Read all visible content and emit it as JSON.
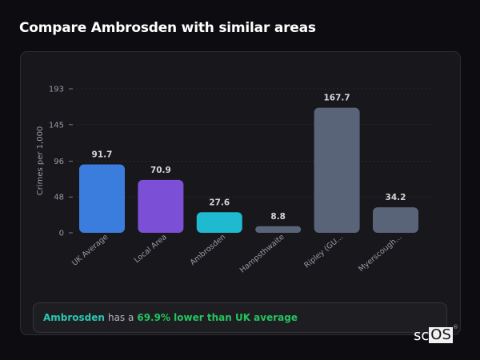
{
  "header": {
    "title": "Compare Ambrosden with similar areas"
  },
  "chart_data": {
    "type": "bar",
    "title": "Compare Ambrosden with similar areas",
    "xlabel": "",
    "ylabel": "Crimes per 1,000",
    "ylim": [
      0,
      193
    ],
    "yticks": [
      0,
      48,
      96,
      145,
      193
    ],
    "grid": true,
    "categories": [
      "UK Average",
      "Local Area",
      "Ambrosden",
      "Hampsthwaite",
      "Ripley (GU...",
      "Myerscough..."
    ],
    "values": [
      91.7,
      70.9,
      27.6,
      8.8,
      167.7,
      34.2
    ],
    "value_labels": [
      "91.7",
      "70.9",
      "27.6",
      "8.8",
      "167.7",
      "34.2"
    ],
    "colors": [
      "#3b7ddd",
      "#7b4fd6",
      "#1fb9d0",
      "#5a6478",
      "#5a6478",
      "#5a6478"
    ]
  },
  "insight": {
    "place": "Ambrosden",
    "connector": "has a",
    "stat": "69.9% lower than UK average"
  },
  "logo": {
    "sc": "sc",
    "os": "OS",
    "reg": "®"
  },
  "colors": {
    "background": "#0d0d11",
    "card": "#17171c",
    "accent_place": "#2bc6b0",
    "accent_stat": "#22c55e"
  }
}
